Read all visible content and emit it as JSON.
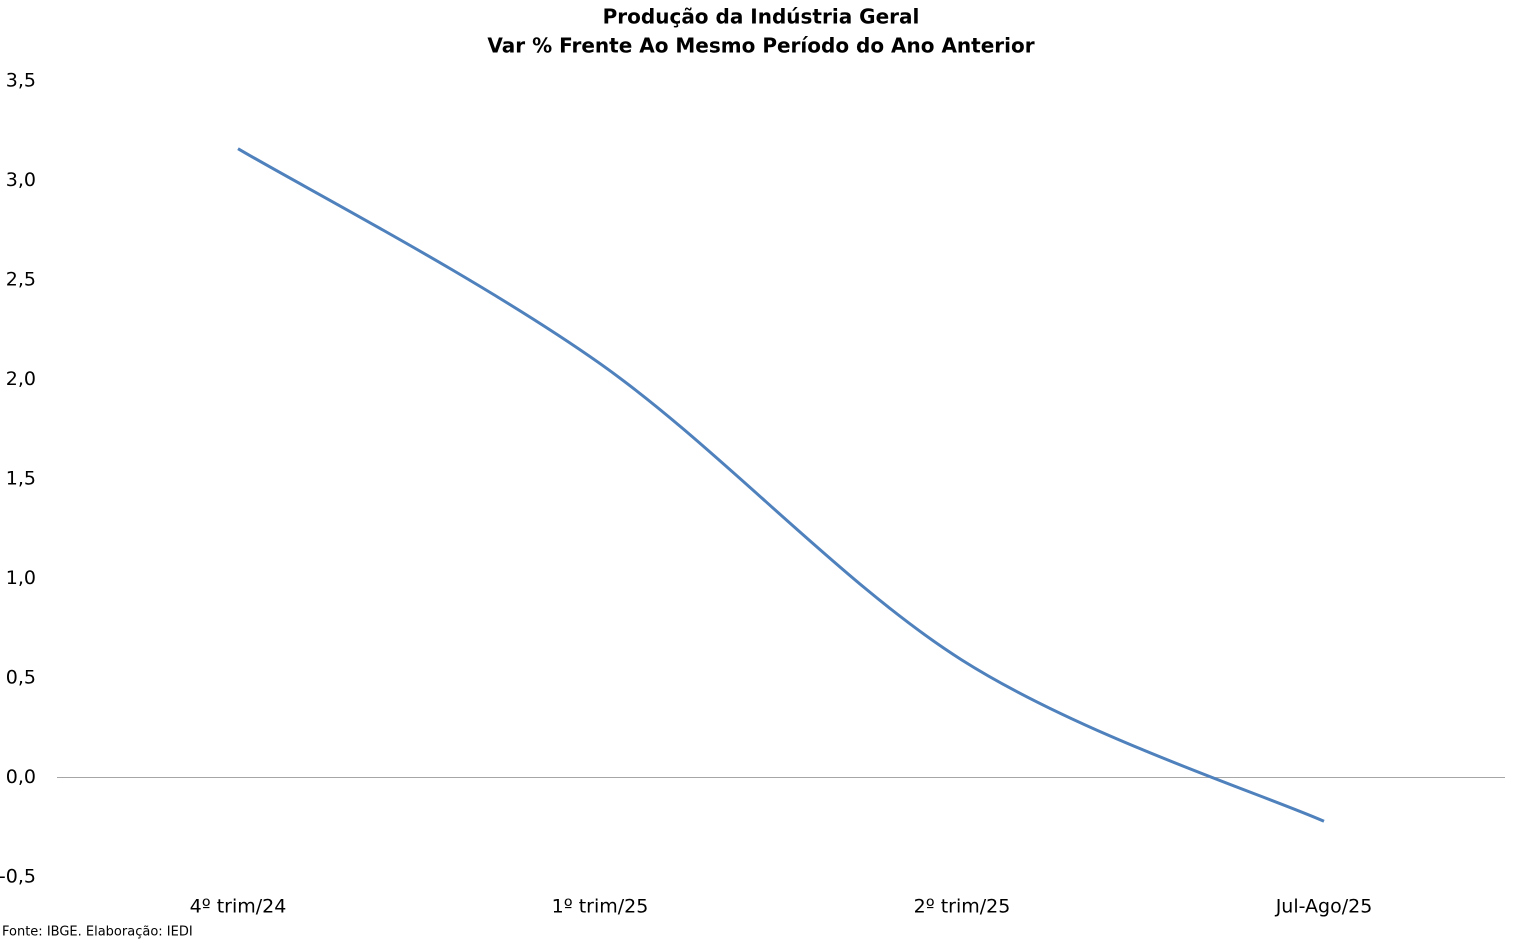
{
  "chart_data": {
    "type": "line",
    "title": "Produção da Indústria Geral",
    "subtitle": "Var % Frente Ao Mesmo Período do Ano Anterior",
    "categories": [
      "4º trim/24",
      "1º trim/25",
      "2º trim/25",
      "Jul-Ago/25"
    ],
    "series": [
      {
        "name": "Produção da Indústria Geral",
        "color": "#4f81bd",
        "values": [
          3.16,
          2.08,
          0.59,
          -0.22
        ]
      }
    ],
    "ylim": [
      -0.5,
      3.5
    ],
    "yticks": [
      {
        "value": -0.5,
        "label": "-0,5"
      },
      {
        "value": 0,
        "label": "0,0"
      },
      {
        "value": 0.5,
        "label": "0,5"
      },
      {
        "value": 1,
        "label": "1,0"
      },
      {
        "value": 1.5,
        "label": "1,5"
      },
      {
        "value": 2,
        "label": "2,0"
      },
      {
        "value": 2.5,
        "label": "2,5"
      },
      {
        "value": 3,
        "label": "3,0"
      },
      {
        "value": 3.5,
        "label": "3,5"
      }
    ],
    "smooth": true,
    "source": "Fonte: IBGE. Elaboração: IEDI"
  }
}
